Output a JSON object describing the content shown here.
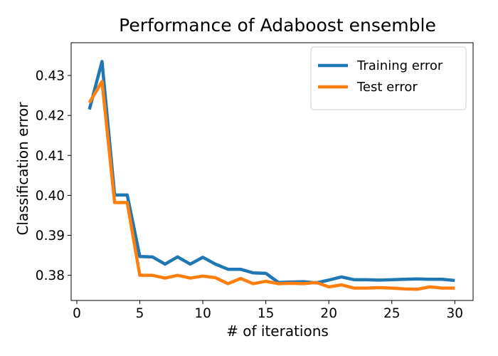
{
  "chart_data": {
    "type": "line",
    "title": "Performance of Adaboost ensemble",
    "xlabel": "# of iterations",
    "ylabel": "Classification error",
    "xlim": [
      -0.45,
      31.45
    ],
    "ylim": [
      0.3737,
      0.4382
    ],
    "xticks": [
      0,
      5,
      10,
      15,
      20,
      25,
      30
    ],
    "xtick_labels": [
      "0",
      "5",
      "10",
      "15",
      "20",
      "25",
      "30"
    ],
    "yticks": [
      0.38,
      0.39,
      0.4,
      0.41,
      0.42,
      0.43
    ],
    "ytick_labels": [
      "0.38",
      "0.39",
      "0.40",
      "0.41",
      "0.42",
      "0.43"
    ],
    "grid": false,
    "legend_position": "top-right",
    "x": [
      1,
      2,
      3,
      4,
      5,
      6,
      7,
      8,
      9,
      10,
      11,
      12,
      13,
      14,
      15,
      16,
      17,
      18,
      19,
      20,
      21,
      22,
      23,
      24,
      25,
      26,
      27,
      28,
      29,
      30
    ],
    "series": [
      {
        "name": "Training error",
        "color": "#1f77b4",
        "values": [
          0.4215,
          0.4335,
          0.4001,
          0.4001,
          0.3847,
          0.3846,
          0.3828,
          0.3846,
          0.3828,
          0.3845,
          0.3828,
          0.3815,
          0.3815,
          0.3806,
          0.3805,
          0.3782,
          0.3783,
          0.3784,
          0.3781,
          0.3788,
          0.3796,
          0.3789,
          0.3789,
          0.3788,
          0.3789,
          0.379,
          0.3791,
          0.379,
          0.379,
          0.3787
        ]
      },
      {
        "name": "Test error",
        "color": "#ff7f0e",
        "values": [
          0.4232,
          0.4285,
          0.3982,
          0.3982,
          0.38,
          0.38,
          0.3793,
          0.38,
          0.3793,
          0.3798,
          0.3794,
          0.3779,
          0.3792,
          0.3779,
          0.3785,
          0.3779,
          0.378,
          0.3779,
          0.3782,
          0.3771,
          0.3776,
          0.3768,
          0.3768,
          0.3769,
          0.3768,
          0.3766,
          0.3765,
          0.3771,
          0.3768,
          0.3768
        ]
      }
    ]
  }
}
